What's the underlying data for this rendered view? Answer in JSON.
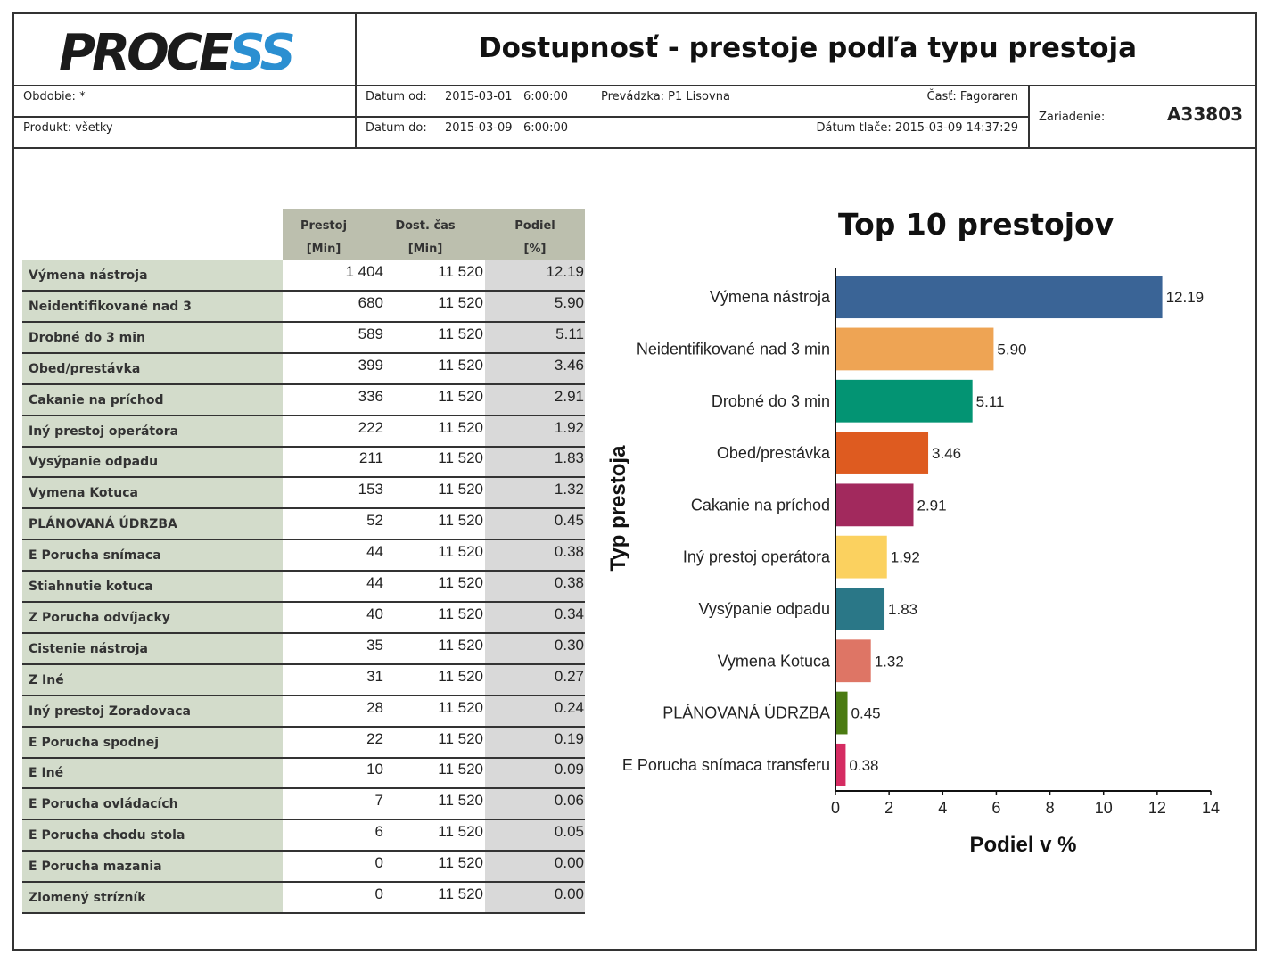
{
  "header": {
    "logo": {
      "dark": "PROCE",
      "blue": "SS"
    },
    "title": "Dostupnosť - prestoje podľa typu prestoja",
    "obdobie": "Obdobie: *",
    "produkt": "Produkt: všetky",
    "datum_od_label": "Datum od:",
    "datum_od_value": "2015-03-01   6:00:00",
    "datum_do_label": "Datum do:",
    "datum_do_value": "2015-03-09   6:00:00",
    "prevadzka": "Prevádzka: P1 Lisovna",
    "cast": "Časť: Fagoraren",
    "datum_tlace": "Dátum tlače: 2015-03-09  14:37:29",
    "zariadenie_label": "Zariadenie:",
    "zariadenie_value": "A33803"
  },
  "table": {
    "headers": [
      {
        "line1": "Prestoj",
        "line2": "[Min]"
      },
      {
        "line1": "Dost. čas",
        "line2": "[Min]"
      },
      {
        "line1": "Podiel",
        "line2": "[%]"
      }
    ],
    "rows": [
      {
        "label": "Výmena nástroja",
        "prestoj": "1 404",
        "dost": "11 520",
        "podiel": "12.19"
      },
      {
        "label": "Neidentifikované nad 3",
        "prestoj": "680",
        "dost": "11 520",
        "podiel": "5.90"
      },
      {
        "label": "Drobné do 3 min",
        "prestoj": "589",
        "dost": "11 520",
        "podiel": "5.11"
      },
      {
        "label": "Obed/prestávka",
        "prestoj": "399",
        "dost": "11 520",
        "podiel": "3.46"
      },
      {
        "label": "Cakanie na príchod",
        "prestoj": "336",
        "dost": "11 520",
        "podiel": "2.91"
      },
      {
        "label": "Iný prestoj operátora",
        "prestoj": "222",
        "dost": "11 520",
        "podiel": "1.92"
      },
      {
        "label": "Vysýpanie odpadu",
        "prestoj": "211",
        "dost": "11 520",
        "podiel": "1.83"
      },
      {
        "label": "Vymena Kotuca",
        "prestoj": "153",
        "dost": "11 520",
        "podiel": "1.32"
      },
      {
        "label": "PLÁNOVANÁ ÚDRZBA",
        "prestoj": "52",
        "dost": "11 520",
        "podiel": "0.45"
      },
      {
        "label": "E Porucha snímaca",
        "prestoj": "44",
        "dost": "11 520",
        "podiel": "0.38"
      },
      {
        "label": "Stiahnutie kotuca",
        "prestoj": "44",
        "dost": "11 520",
        "podiel": "0.38"
      },
      {
        "label": "Z Porucha odvíjacky",
        "prestoj": "40",
        "dost": "11 520",
        "podiel": "0.34"
      },
      {
        "label": "Cistenie nástroja",
        "prestoj": "35",
        "dost": "11 520",
        "podiel": "0.30"
      },
      {
        "label": "Z Iné",
        "prestoj": "31",
        "dost": "11 520",
        "podiel": "0.27"
      },
      {
        "label": "Iný prestoj Zoradovaca",
        "prestoj": "28",
        "dost": "11 520",
        "podiel": "0.24"
      },
      {
        "label": "E Porucha spodnej",
        "prestoj": "22",
        "dost": "11 520",
        "podiel": "0.19"
      },
      {
        "label": "E Iné",
        "prestoj": "10",
        "dost": "11 520",
        "podiel": "0.09"
      },
      {
        "label": "E Porucha ovládacích",
        "prestoj": "7",
        "dost": "11 520",
        "podiel": "0.06"
      },
      {
        "label": "E Porucha chodu stola",
        "prestoj": "6",
        "dost": "11 520",
        "podiel": "0.05"
      },
      {
        "label": "E Porucha mazania",
        "prestoj": "0",
        "dost": "11 520",
        "podiel": "0.00"
      },
      {
        "label": "Zlomený strízník",
        "prestoj": "0",
        "dost": "11 520",
        "podiel": "0.00"
      }
    ]
  },
  "chart_data": {
    "type": "bar",
    "orientation": "horizontal",
    "title": "Top 10 prestojov",
    "xlabel": "Podiel v %",
    "ylabel": "Typ prestoja",
    "xlim": [
      0,
      14
    ],
    "xticks": [
      0,
      2,
      4,
      6,
      8,
      10,
      12,
      14
    ],
    "grid": false,
    "categories": [
      "Výmena nástroja",
      "Neidentifikované nad 3 min",
      "Drobné do 3 min",
      "Obed/prestávka",
      "Cakanie na príchod",
      "Iný prestoj operátora",
      "Vysýpanie odpadu",
      "Vymena Kotuca",
      "PLÁNOVANÁ ÚDRZBA",
      "E Porucha snímaca transferu"
    ],
    "values": [
      12.19,
      5.9,
      5.11,
      3.46,
      2.91,
      1.92,
      1.83,
      1.32,
      0.45,
      0.38
    ],
    "value_labels": [
      "12.19",
      "5.90",
      "5.11",
      "3.46",
      "2.91",
      "1.92",
      "1.83",
      "1.32",
      "0.45",
      "0.38"
    ],
    "colors": [
      "#3a6496",
      "#eea454",
      "#039473",
      "#de5b20",
      "#a2295d",
      "#fbd15f",
      "#2a7787",
      "#de7565",
      "#4b7b12",
      "#d52c62"
    ]
  }
}
